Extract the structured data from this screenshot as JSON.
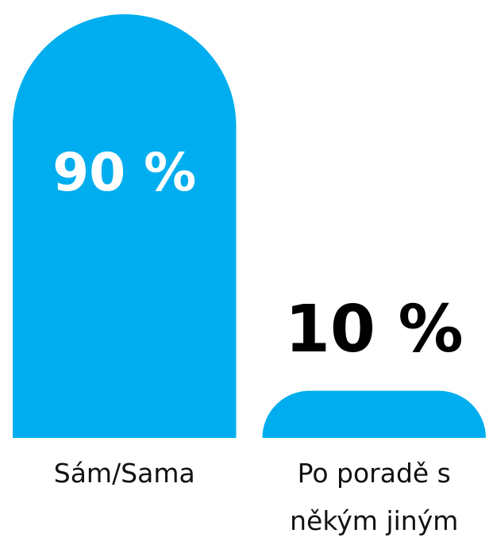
{
  "chart_data": {
    "type": "bar",
    "categories": [
      "Sám/Sama",
      "Po poradě s někým jiným"
    ],
    "values": [
      90,
      10
    ],
    "value_labels": [
      "90 %",
      "10 %"
    ],
    "color": "#00aeef",
    "ylim": [
      0,
      90
    ]
  }
}
